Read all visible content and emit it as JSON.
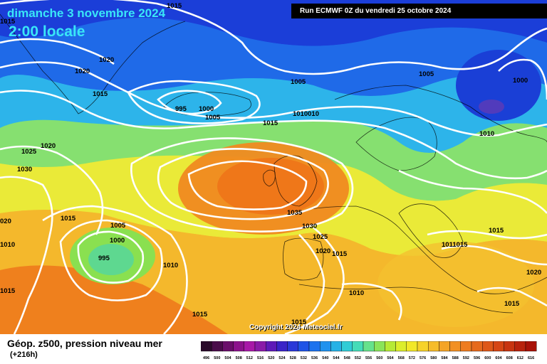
{
  "header": {
    "date": "dimanche 3 novembre 2024",
    "time": "2:00 locale",
    "run_info": "Run ECMWF 0Z du vendredi 25 octobre 2024"
  },
  "copyright": "Copyright 2024 Meteociel.fr",
  "footer": {
    "title": "Géop. z500, pression niveau mer",
    "subtitle": "(+216h)"
  },
  "legend": {
    "values": [
      "496",
      "500",
      "504",
      "508",
      "512",
      "516",
      "520",
      "524",
      "528",
      "532",
      "536",
      "540",
      "544",
      "548",
      "552",
      "556",
      "560",
      "564",
      "568",
      "572",
      "576",
      "580",
      "584",
      "588",
      "592",
      "596",
      "600",
      "604",
      "608",
      "612",
      "616"
    ],
    "colors": [
      "#2a0a2a",
      "#4a0c4a",
      "#6a0e6a",
      "#8c128c",
      "#a818a8",
      "#8a1aa8",
      "#5e1ab8",
      "#3a24c8",
      "#2a38d8",
      "#1f54e6",
      "#1c72ee",
      "#1f92ee",
      "#26b2e6",
      "#30ccd6",
      "#44dcb8",
      "#66e28c",
      "#8ae45a",
      "#b6ea36",
      "#dcee2c",
      "#f2e828",
      "#f6d22a",
      "#f6bc2a",
      "#f4a426",
      "#f29024",
      "#ee7c20",
      "#e66a1c",
      "#de5818",
      "#d64614",
      "#c83410",
      "#b8220c",
      "#a81208"
    ],
    "tick_labels": [
      "496",
      "500",
      "504",
      "508",
      "512",
      "516",
      "520",
      "524",
      "528",
      "532",
      "536",
      "540",
      "544",
      "548",
      "552",
      "556",
      "560",
      "564",
      "568",
      "572",
      "576",
      "580",
      "584",
      "588",
      "592",
      "596",
      "600",
      "604",
      "608",
      "612",
      "616"
    ]
  },
  "isobar_labels": [
    {
      "id": "l1015-top",
      "text": "1015"
    },
    {
      "id": "l1015-tl",
      "text": "1015"
    },
    {
      "id": "l1020-a",
      "text": "1020"
    },
    {
      "id": "l1020-b",
      "text": "1020"
    },
    {
      "id": "l1015-c",
      "text": "1015"
    },
    {
      "id": "l995-a",
      "text": "995"
    },
    {
      "id": "l1000-a",
      "text": "1000"
    },
    {
      "id": "l1005-a",
      "text": "1005"
    },
    {
      "id": "l1005-b",
      "text": "1005"
    },
    {
      "id": "l1010010",
      "text": "1010010"
    },
    {
      "id": "l1015-d",
      "text": "1015"
    },
    {
      "id": "l1005-c",
      "text": "1005"
    },
    {
      "id": "l1000-b",
      "text": "1000"
    },
    {
      "id": "l1010-a",
      "text": "1010"
    },
    {
      "id": "l1025-a",
      "text": "1025"
    },
    {
      "id": "l1020-c",
      "text": "1020"
    },
    {
      "id": "l1030-a",
      "text": "1030"
    },
    {
      "id": "l1020-d",
      "text": "020"
    },
    {
      "id": "l1010-b",
      "text": "1010"
    },
    {
      "id": "l1015-e",
      "text": "1015"
    },
    {
      "id": "l1005-d",
      "text": "1005"
    },
    {
      "id": "l1000-c",
      "text": "1000"
    },
    {
      "id": "l995-b",
      "text": "995"
    },
    {
      "id": "l1010-c",
      "text": "1010"
    },
    {
      "id": "l1015-f",
      "text": "1015"
    },
    {
      "id": "l1015-g",
      "text": "1015"
    },
    {
      "id": "l1035",
      "text": "1035"
    },
    {
      "id": "l1030-b",
      "text": "1030"
    },
    {
      "id": "l1025-b",
      "text": "1025"
    },
    {
      "id": "l1020-e",
      "text": "1020"
    },
    {
      "id": "l1015-h",
      "text": "1015"
    },
    {
      "id": "l1010-d",
      "text": "1010"
    },
    {
      "id": "l1015-i",
      "text": "1015"
    },
    {
      "id": "l1015-j",
      "text": "1015"
    },
    {
      "id": "l1011015",
      "text": "1011015"
    },
    {
      "id": "l1020-f",
      "text": "1020"
    },
    {
      "id": "l1015-k",
      "text": "1015"
    }
  ]
}
